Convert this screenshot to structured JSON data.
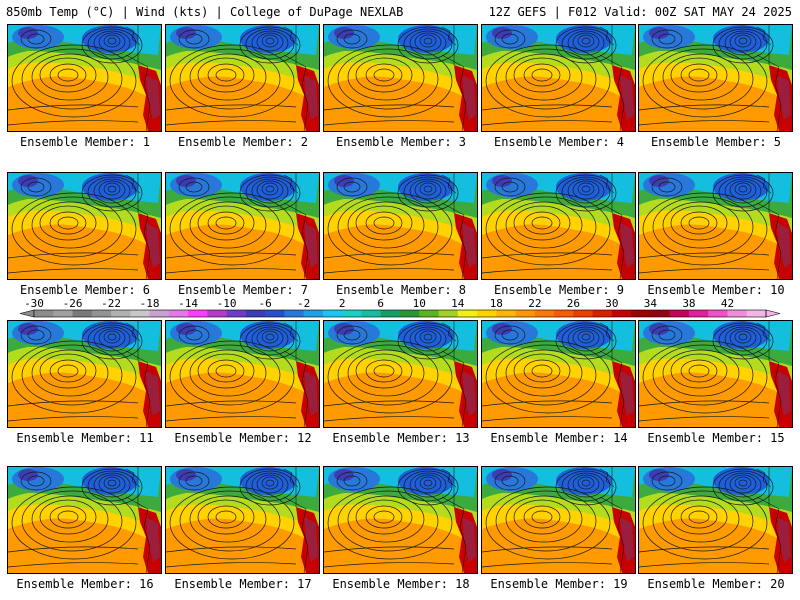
{
  "header": {
    "left": "850mb Temp (°C) | Wind (kts) | College of DuPage NEXLAB",
    "right": "12Z GEFS | F012 Valid: 00Z SAT MAY 24 2025"
  },
  "panels": [
    {
      "label": "Ensemble Member: 1"
    },
    {
      "label": "Ensemble Member: 2"
    },
    {
      "label": "Ensemble Member: 3"
    },
    {
      "label": "Ensemble Member: 4"
    },
    {
      "label": "Ensemble Member: 5"
    },
    {
      "label": "Ensemble Member: 6"
    },
    {
      "label": "Ensemble Member: 7"
    },
    {
      "label": "Ensemble Member: 8"
    },
    {
      "label": "Ensemble Member: 9"
    },
    {
      "label": "Ensemble Member: 10"
    },
    {
      "label": "Ensemble Member: 11"
    },
    {
      "label": "Ensemble Member: 12"
    },
    {
      "label": "Ensemble Member: 13"
    },
    {
      "label": "Ensemble Member: 14"
    },
    {
      "label": "Ensemble Member: 15"
    },
    {
      "label": "Ensemble Member: 16"
    },
    {
      "label": "Ensemble Member: 17"
    },
    {
      "label": "Ensemble Member: 18"
    },
    {
      "label": "Ensemble Member: 19"
    },
    {
      "label": "Ensemble Member: 20"
    }
  ],
  "colorbar": {
    "tick_labels": [
      "-30",
      "-26",
      "-22",
      "-18",
      "-14",
      "-10",
      "-6",
      "-2",
      "2",
      "6",
      "10",
      "14",
      "18",
      "22",
      "26",
      "30",
      "34",
      "38",
      "42"
    ],
    "colors": [
      "#8c8c8c",
      "#a0a0a0",
      "#7a7a7a",
      "#939393",
      "#b0b0b0",
      "#c8c8c8",
      "#c8a0d2",
      "#e678e6",
      "#ff3cff",
      "#b43cc8",
      "#6e3cc8",
      "#3c3cb4",
      "#2850c8",
      "#2878dc",
      "#1ea0e6",
      "#14c8f0",
      "#14d2c8",
      "#14bea0",
      "#14a064",
      "#289632",
      "#5ab41e",
      "#a0d21e",
      "#f0f014",
      "#ffd200",
      "#ffb400",
      "#ff9600",
      "#ff7800",
      "#ff5a00",
      "#f03c00",
      "#dc1e00",
      "#c80000",
      "#a00000",
      "#960014",
      "#c8005a",
      "#e61e9b",
      "#f050c8",
      "#f08cdc",
      "#f5b4e6"
    ],
    "units": "°C"
  },
  "map_colors": {
    "cold": "#1e5fdc",
    "cool": "#14bede",
    "mild": "#3caa3c",
    "warm": "#e6e614",
    "hot": "#ffa500",
    "hotter": "#ff8c00",
    "land": "#b40000",
    "contour": "#1a1a1a"
  }
}
